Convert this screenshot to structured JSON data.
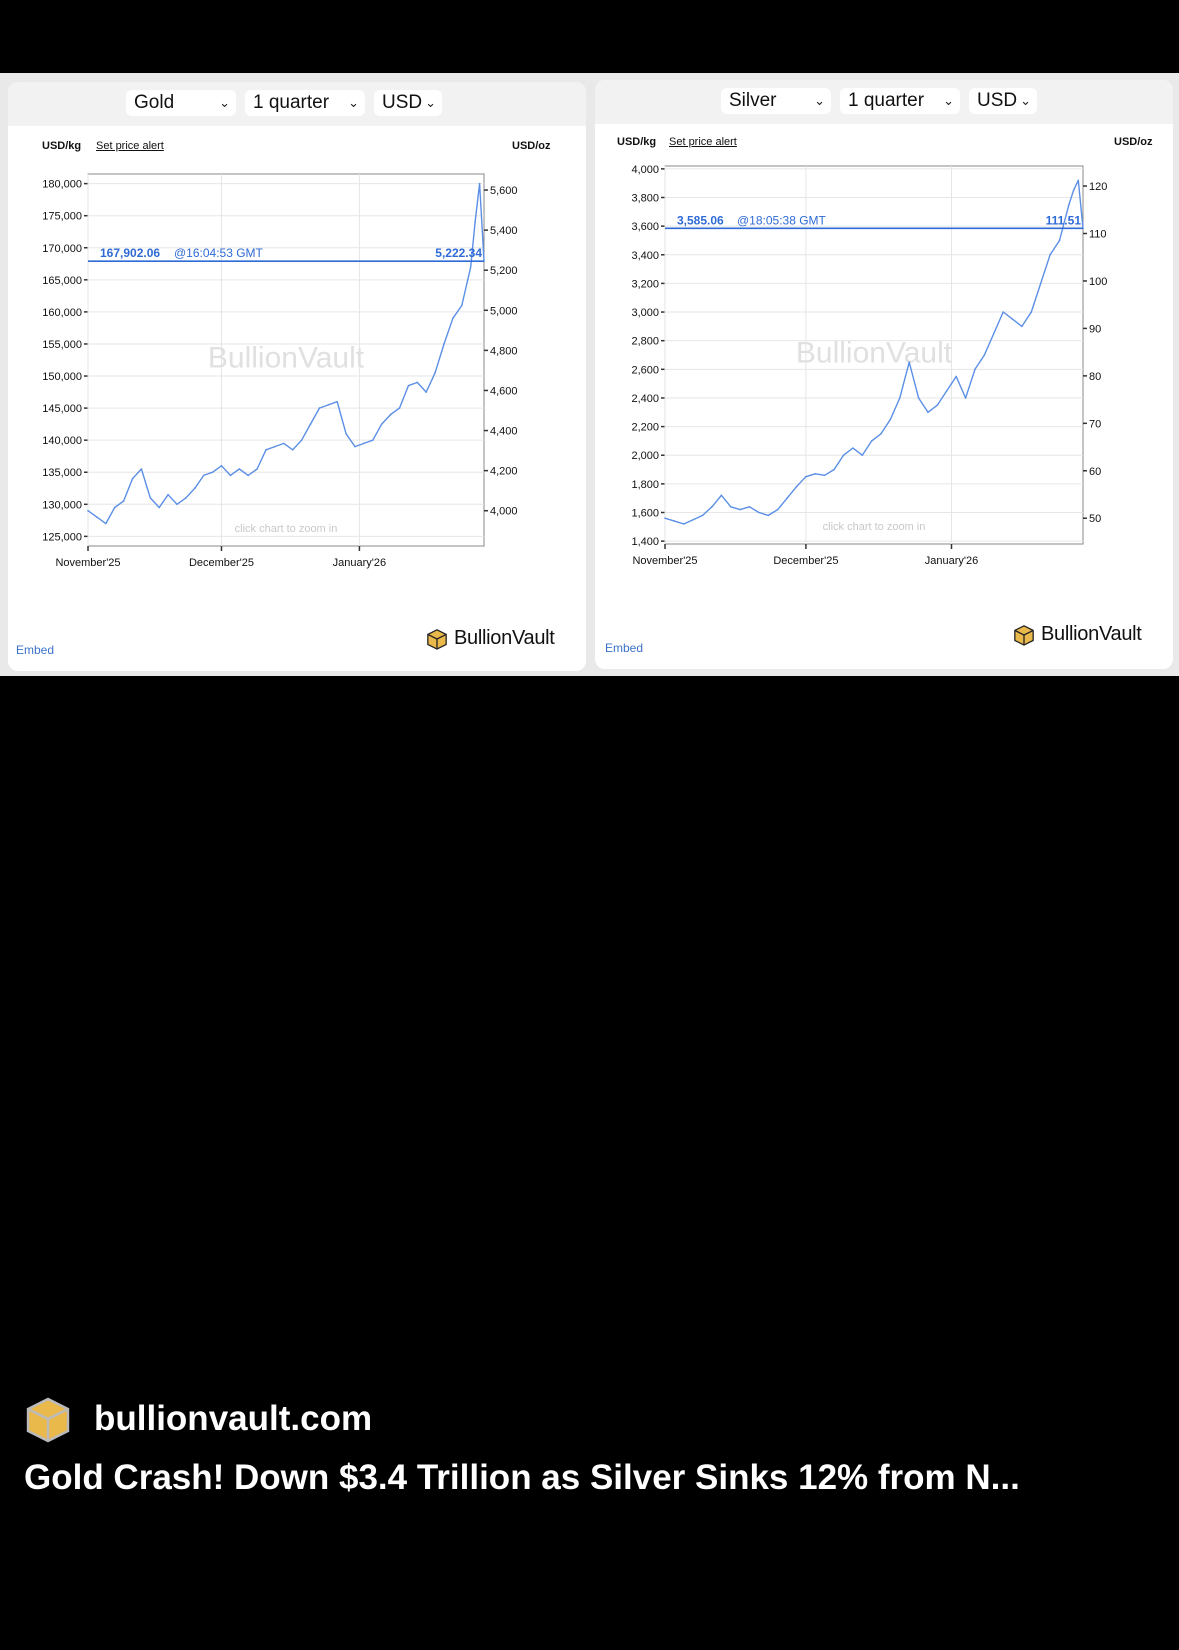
{
  "charts": [
    {
      "selectors": {
        "metal": "Gold",
        "period": "1 quarter",
        "currency": "USD"
      },
      "left_axis_label": "USD/kg",
      "alert_link": "Set price alert",
      "right_axis_label": "USD/oz",
      "price_kg": "167,902.06",
      "timestamp": "@16:04:53 GMT",
      "price_oz": "5,222.34",
      "watermark": "BullionVault",
      "zoom_hint": "click chart to zoom in",
      "embed_label": "Embed",
      "brand": "BullionVault",
      "chart_data": {
        "type": "line",
        "title": "",
        "xlabel": "",
        "ylabel": "USD/kg",
        "x_ticks": [
          "November'25",
          "December'25",
          "January'26"
        ],
        "y_ticks": [
          "125,000",
          "130,000",
          "135,000",
          "140,000",
          "145,000",
          "150,000",
          "155,000",
          "160,000",
          "165,000",
          "170,000",
          "175,000",
          "180,000"
        ],
        "y2_ticks": [
          "4,000",
          "4,200",
          "4,400",
          "4,600",
          "4,800",
          "5,000",
          "5,200",
          "5,400",
          "5,600"
        ],
        "ylim": [
          123500,
          181500
        ],
        "x_range": [
          "2025-11-01",
          "2026-01-29"
        ],
        "current_value": 167902.06,
        "series": [
          {
            "values": [
              [
                "2025-11-01",
                129000
              ],
              [
                "2025-11-03",
                128000
              ],
              [
                "2025-11-05",
                127000
              ],
              [
                "2025-11-07",
                129500
              ],
              [
                "2025-11-09",
                130500
              ],
              [
                "2025-11-11",
                134000
              ],
              [
                "2025-11-13",
                135500
              ],
              [
                "2025-11-15",
                131000
              ],
              [
                "2025-11-17",
                129500
              ],
              [
                "2025-11-19",
                131500
              ],
              [
                "2025-11-21",
                130000
              ],
              [
                "2025-11-23",
                131000
              ],
              [
                "2025-11-25",
                132500
              ],
              [
                "2025-11-27",
                134500
              ],
              [
                "2025-11-29",
                135000
              ],
              [
                "2025-12-01",
                136000
              ],
              [
                "2025-12-03",
                134500
              ],
              [
                "2025-12-05",
                135500
              ],
              [
                "2025-12-07",
                134500
              ],
              [
                "2025-12-09",
                135500
              ],
              [
                "2025-12-11",
                138500
              ],
              [
                "2025-12-13",
                139000
              ],
              [
                "2025-12-15",
                139500
              ],
              [
                "2025-12-17",
                138500
              ],
              [
                "2025-12-19",
                140000
              ],
              [
                "2025-12-21",
                142500
              ],
              [
                "2025-12-23",
                145000
              ],
              [
                "2025-12-25",
                145500
              ],
              [
                "2025-12-27",
                146000
              ],
              [
                "2025-12-29",
                141000
              ],
              [
                "2025-12-31",
                139000
              ],
              [
                "2026-01-02",
                139500
              ],
              [
                "2026-01-04",
                140000
              ],
              [
                "2026-01-06",
                142500
              ],
              [
                "2026-01-08",
                144000
              ],
              [
                "2026-01-10",
                145000
              ],
              [
                "2026-01-12",
                148500
              ],
              [
                "2026-01-14",
                149000
              ],
              [
                "2026-01-16",
                147500
              ],
              [
                "2026-01-18",
                150500
              ],
              [
                "2026-01-20",
                155000
              ],
              [
                "2026-01-22",
                159000
              ],
              [
                "2026-01-24",
                161000
              ],
              [
                "2026-01-26",
                167000
              ],
              [
                "2026-01-27",
                174000
              ],
              [
                "2026-01-28",
                180000
              ],
              [
                "2026-01-29",
                167900
              ]
            ]
          }
        ]
      }
    },
    {
      "selectors": {
        "metal": "Silver",
        "period": "1 quarter",
        "currency": "USD"
      },
      "left_axis_label": "USD/kg",
      "alert_link": "Set price alert",
      "right_axis_label": "USD/oz",
      "price_kg": "3,585.06",
      "timestamp": "@18:05:38 GMT",
      "price_oz": "111.51",
      "watermark": "BullionVault",
      "zoom_hint": "click chart to zoom in",
      "embed_label": "Embed",
      "brand": "BullionVault",
      "chart_data": {
        "type": "line",
        "title": "",
        "xlabel": "",
        "ylabel": "USD/kg",
        "x_ticks": [
          "November'25",
          "December'25",
          "January'26"
        ],
        "y_ticks": [
          "1,400",
          "1,600",
          "1,800",
          "2,000",
          "2,200",
          "2,400",
          "2,600",
          "2,800",
          "3,000",
          "3,200",
          "3,400",
          "3,600",
          "3,800",
          "4,000"
        ],
        "y2_ticks": [
          "50",
          "60",
          "70",
          "80",
          "90",
          "100",
          "110",
          "120"
        ],
        "ylim": [
          1380,
          4020
        ],
        "x_range": [
          "2025-11-01",
          "2026-01-29"
        ],
        "current_value": 3585.06,
        "series": [
          {
            "values": [
              [
                "2025-11-01",
                1560
              ],
              [
                "2025-11-03",
                1540
              ],
              [
                "2025-11-05",
                1520
              ],
              [
                "2025-11-07",
                1550
              ],
              [
                "2025-11-09",
                1580
              ],
              [
                "2025-11-11",
                1640
              ],
              [
                "2025-11-13",
                1720
              ],
              [
                "2025-11-15",
                1640
              ],
              [
                "2025-11-17",
                1620
              ],
              [
                "2025-11-19",
                1640
              ],
              [
                "2025-11-21",
                1600
              ],
              [
                "2025-11-23",
                1580
              ],
              [
                "2025-11-25",
                1620
              ],
              [
                "2025-11-27",
                1700
              ],
              [
                "2025-11-29",
                1780
              ],
              [
                "2025-12-01",
                1850
              ],
              [
                "2025-12-03",
                1870
              ],
              [
                "2025-12-05",
                1860
              ],
              [
                "2025-12-07",
                1900
              ],
              [
                "2025-12-09",
                2000
              ],
              [
                "2025-12-11",
                2050
              ],
              [
                "2025-12-13",
                2000
              ],
              [
                "2025-12-15",
                2100
              ],
              [
                "2025-12-17",
                2150
              ],
              [
                "2025-12-19",
                2250
              ],
              [
                "2025-12-21",
                2400
              ],
              [
                "2025-12-23",
                2650
              ],
              [
                "2025-12-25",
                2400
              ],
              [
                "2025-12-27",
                2300
              ],
              [
                "2025-12-29",
                2350
              ],
              [
                "2025-12-31",
                2450
              ],
              [
                "2026-01-02",
                2550
              ],
              [
                "2026-01-04",
                2400
              ],
              [
                "2026-01-06",
                2600
              ],
              [
                "2026-01-08",
                2700
              ],
              [
                "2026-01-10",
                2850
              ],
              [
                "2026-01-12",
                3000
              ],
              [
                "2026-01-14",
                2950
              ],
              [
                "2026-01-16",
                2900
              ],
              [
                "2026-01-18",
                3000
              ],
              [
                "2026-01-20",
                3200
              ],
              [
                "2026-01-22",
                3400
              ],
              [
                "2026-01-24",
                3500
              ],
              [
                "2026-01-26",
                3750
              ],
              [
                "2026-01-27",
                3850
              ],
              [
                "2026-01-28",
                3920
              ],
              [
                "2026-01-29",
                3585
              ]
            ]
          }
        ]
      }
    }
  ],
  "card": {
    "domain": "bullionvault.com",
    "headline": "Gold Crash! Down $3.4 Trillion as Silver Sinks 12% from N..."
  },
  "colors": {
    "line": "#5b8fe6",
    "price_text": "#2f6bd6",
    "background": "#000000",
    "panel": "#ffffff"
  },
  "icons": [
    "chevron-down-icon",
    "bullionvault-cube-icon"
  ]
}
